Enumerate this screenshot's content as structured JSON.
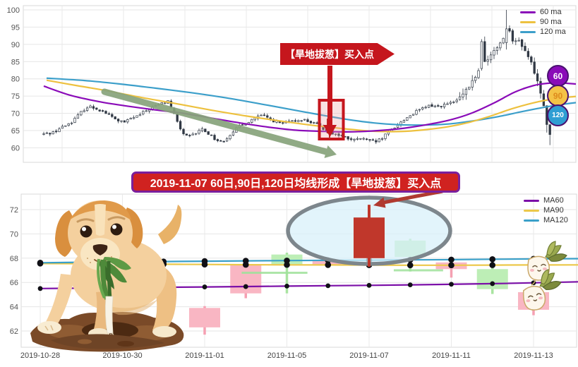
{
  "top_chart": {
    "legend": [
      {
        "label": "60 ma",
        "color": "#8a0bb8"
      },
      {
        "label": "90 ma",
        "color": "#edc13f"
      },
      {
        "label": "120 ma",
        "color": "#3c9fca"
      }
    ],
    "badges": [
      {
        "label": "60",
        "fill": "#8a0bb8",
        "text": "#ffffff"
      },
      {
        "label": "90",
        "fill": "#f4c246",
        "text": "#dd8a1c"
      },
      {
        "label": "120",
        "fill": "#2f9ed3",
        "text": "#ffffff"
      }
    ],
    "buy_annotation": {
      "text": "【旱地拔葱】买入点",
      "fill": "#c5161d"
    }
  },
  "bottom_chart": {
    "legend": [
      {
        "label": "MA60",
        "color": "#7b0fa8"
      },
      {
        "label": "MA90",
        "color": "#ecc84a"
      },
      {
        "label": "MA120",
        "color": "#3aa0c9"
      }
    ],
    "banner": {
      "text": "2019-11-07 60日,90日,120日均线形成【旱地拔葱】买入点",
      "fill": "#d02220",
      "border": "#7a1f9c"
    }
  },
  "decor": {
    "dog": "cartoon labrador puppy pulling a green onion out of a dirt mound",
    "radish_characters": 2
  },
  "chart_data": [
    {
      "id": "main-daily-chart",
      "type": "candlestick",
      "ylim": [
        57,
        101
      ],
      "y_ticks": [
        60,
        65,
        70,
        75,
        80,
        85,
        90,
        95,
        100
      ],
      "x_axis_labels": "hidden",
      "grid": true,
      "legend_position": "top-right",
      "candle_down_color": "#303844",
      "candle_up_color": "#ffffff",
      "price_path_keypoints": [
        [
          63,
          64.0
        ],
        [
          75,
          64.5
        ],
        [
          88,
          66.0
        ],
        [
          100,
          67.3
        ],
        [
          108,
          68.8
        ],
        [
          118,
          71.0
        ],
        [
          126,
          72.0
        ],
        [
          138,
          71.3
        ],
        [
          148,
          70.3
        ],
        [
          158,
          69.0
        ],
        [
          166,
          68.0
        ],
        [
          176,
          67.3
        ],
        [
          186,
          68.6
        ],
        [
          196,
          69.3
        ],
        [
          206,
          70.6
        ],
        [
          216,
          71.8
        ],
        [
          228,
          72.8
        ],
        [
          238,
          73.5
        ],
        [
          244,
          71.0
        ],
        [
          252,
          67.0
        ],
        [
          258,
          64.5
        ],
        [
          266,
          63.0
        ],
        [
          276,
          64.0
        ],
        [
          286,
          65.5
        ],
        [
          296,
          64.0
        ],
        [
          306,
          62.3
        ],
        [
          314,
          61.7
        ],
        [
          322,
          63.0
        ],
        [
          330,
          64.8
        ],
        [
          340,
          66.3
        ],
        [
          350,
          67.3
        ],
        [
          360,
          68.6
        ],
        [
          370,
          69.3
        ],
        [
          378,
          68.8
        ],
        [
          388,
          67.8
        ],
        [
          398,
          67.0
        ],
        [
          408,
          67.3
        ],
        [
          418,
          67.8
        ],
        [
          428,
          68.3
        ],
        [
          438,
          67.6
        ],
        [
          448,
          66.8
        ],
        [
          456,
          65.8
        ],
        [
          464,
          65.0
        ],
        [
          470,
          64.3
        ],
        [
          478,
          63.8
        ],
        [
          486,
          63.2
        ],
        [
          494,
          62.6
        ],
        [
          502,
          62.2
        ],
        [
          512,
          62.8
        ],
        [
          522,
          62.0
        ],
        [
          532,
          61.7
        ],
        [
          540,
          62.5
        ],
        [
          548,
          64.0
        ],
        [
          556,
          65.5
        ],
        [
          564,
          66.8
        ],
        [
          572,
          68.0
        ],
        [
          580,
          69.3
        ],
        [
          590,
          70.5
        ],
        [
          600,
          71.5
        ],
        [
          610,
          72.3
        ],
        [
          620,
          72.0
        ],
        [
          630,
          72.5
        ],
        [
          640,
          73.0
        ],
        [
          648,
          73.8
        ],
        [
          656,
          75.5
        ],
        [
          664,
          77.5
        ],
        [
          670,
          79.5
        ],
        [
          676,
          81.5
        ],
        [
          682,
          83.5
        ],
        [
          688,
          85.0
        ],
        [
          694,
          86.5
        ],
        [
          700,
          88.0
        ],
        [
          706,
          89.5
        ],
        [
          712,
          91.5
        ],
        [
          716,
          93.5
        ],
        [
          720,
          96.0
        ],
        [
          724,
          92.5
        ],
        [
          728,
          90.0
        ],
        [
          734,
          91.5
        ],
        [
          740,
          89.5
        ],
        [
          746,
          87.5
        ],
        [
          752,
          85.0
        ],
        [
          758,
          81.5
        ],
        [
          764,
          77.5
        ],
        [
          770,
          73.0
        ],
        [
          774,
          68.0
        ],
        [
          778,
          63.5
        ],
        [
          782,
          64.5
        ]
      ],
      "spike": {
        "x": 719,
        "high": 100,
        "body": [
          90.5,
          94.5
        ]
      },
      "big_candle": {
        "x": 681,
        "body": [
          83,
          90.8
        ]
      },
      "series": [
        {
          "name": "60 ma",
          "color": "#8a0bb8",
          "keypoints": [
            [
              62,
              77.9
            ],
            [
              100,
              75.2
            ],
            [
              140,
              73.4
            ],
            [
              180,
              72.1
            ],
            [
              220,
              71.0
            ],
            [
              260,
              70.0
            ],
            [
              300,
              68.6
            ],
            [
              340,
              67.2
            ],
            [
              380,
              66.0
            ],
            [
              420,
              65.1
            ],
            [
              455,
              64.8
            ],
            [
              490,
              64.6
            ],
            [
              520,
              64.8
            ],
            [
              550,
              65.2
            ],
            [
              580,
              65.9
            ],
            [
              610,
              66.9
            ],
            [
              640,
              68.2
            ],
            [
              670,
              70.2
            ],
            [
              700,
              73.0
            ],
            [
              730,
              76.2
            ],
            [
              755,
              78.0
            ],
            [
              775,
              78.7
            ],
            [
              795,
              78.8
            ],
            [
              816,
              78.5
            ]
          ]
        },
        {
          "name": "90 ma",
          "color": "#edc13f",
          "keypoints": [
            [
              66,
              79.6
            ],
            [
              110,
              78.0
            ],
            [
              150,
              76.6
            ],
            [
              200,
              74.6
            ],
            [
              250,
              72.8
            ],
            [
              300,
              70.9
            ],
            [
              350,
              69.2
            ],
            [
              400,
              67.7
            ],
            [
              440,
              66.6
            ],
            [
              480,
              65.7
            ],
            [
              515,
              65.0
            ],
            [
              545,
              64.7
            ],
            [
              575,
              64.8
            ],
            [
              605,
              65.3
            ],
            [
              635,
              66.1
            ],
            [
              665,
              67.4
            ],
            [
              695,
              69.2
            ],
            [
              725,
              71.3
            ],
            [
              755,
              73.0
            ],
            [
              785,
              74.2
            ],
            [
              816,
              74.9
            ]
          ]
        },
        {
          "name": "120 ma",
          "color": "#3c9fca",
          "keypoints": [
            [
              66,
              80.2
            ],
            [
              120,
              79.5
            ],
            [
              170,
              78.5
            ],
            [
              220,
              77.3
            ],
            [
              270,
              76.0
            ],
            [
              320,
              74.5
            ],
            [
              370,
              72.7
            ],
            [
              410,
              71.2
            ],
            [
              450,
              69.7
            ],
            [
              490,
              68.3
            ],
            [
              530,
              67.2
            ],
            [
              565,
              66.7
            ],
            [
              600,
              66.6
            ],
            [
              635,
              66.9
            ],
            [
              670,
              67.8
            ],
            [
              705,
              69.0
            ],
            [
              740,
              70.5
            ],
            [
              775,
              71.9
            ],
            [
              800,
              72.7
            ],
            [
              816,
              73.1
            ]
          ]
        }
      ],
      "annotations": {
        "banner_text": "【旱地拔葱】买入点",
        "highlight_box_price_range": [
          62.5,
          73.5
        ],
        "trend_arrow": "green downtrend arrow across middle of chart",
        "buy_point_arrow": "red arrow from banner down into highlight box"
      }
    },
    {
      "id": "zoomed-buy-point-chart",
      "type": "candlestick",
      "ylim": [
        61,
        72.8
      ],
      "y_ticks": [
        62,
        64,
        66,
        68,
        70,
        72
      ],
      "x_tick_labels": [
        "2019-10-28",
        "2019-10-30",
        "2019-11-01",
        "2019-11-05",
        "2019-11-07",
        "2019-11-11",
        "2019-11-13"
      ],
      "dates": [
        "2019-10-28",
        "2019-10-29",
        "2019-10-30",
        "2019-10-31",
        "2019-11-01",
        "2019-11-04",
        "2019-11-05",
        "2019-11-06",
        "2019-11-07",
        "2019-11-08",
        "2019-11-11",
        "2019-11-12",
        "2019-11-13"
      ],
      "occluded_by_dog": [
        "2019-10-28",
        "2019-10-29",
        "2019-10-30",
        "2019-10-31"
      ],
      "up_color": "#f9b6c3",
      "down_color": "#bdeeb6",
      "highlight_color": "#c0372b",
      "candles": [
        {
          "date": "2019-10-28",
          "occluded": true
        },
        {
          "date": "2019-10-29",
          "occluded": true
        },
        {
          "date": "2019-10-30",
          "occluded": true
        },
        {
          "date": "2019-10-31",
          "occluded": true
        },
        {
          "date": "2019-11-01",
          "open": 62.3,
          "close": 63.9,
          "high": 64.05,
          "low": 61.7,
          "dir": "up"
        },
        {
          "date": "2019-11-04",
          "open": 65.1,
          "close": 67.5,
          "high": 67.6,
          "low": 64.7,
          "dir": "up"
        },
        {
          "date": "2019-11-05",
          "open": 68.3,
          "close": 67.5,
          "high": 68.45,
          "low": 65.1,
          "dir": "down"
        },
        {
          "date": "2019-11-06",
          "open": 67.5,
          "close": 67.75,
          "high": 67.95,
          "low": 67.35,
          "dir": "up"
        },
        {
          "date": "2019-11-07",
          "open": 68.0,
          "close": 71.35,
          "high": 72.4,
          "low": 67.3,
          "dir": "up",
          "highlight": true
        },
        {
          "date": "2019-11-08",
          "open": 69.45,
          "close": 68.1,
          "high": 69.6,
          "low": 66.9,
          "dir": "down"
        },
        {
          "date": "2019-11-11",
          "open": 67.1,
          "close": 67.65,
          "high": 67.75,
          "low": 66.4,
          "dir": "up"
        },
        {
          "date": "2019-11-12",
          "open": 67.1,
          "close": 65.45,
          "high": 67.2,
          "low": 65.05,
          "dir": "down"
        },
        {
          "date": "2019-11-13",
          "open": 63.75,
          "close": 65.2,
          "high": 65.3,
          "low": 63.3,
          "dir": "up"
        }
      ],
      "series": [
        {
          "name": "MA60",
          "color": "#7b0fa8",
          "values": [
            65.5,
            65.53,
            65.56,
            65.6,
            65.63,
            65.66,
            65.7,
            65.73,
            65.76,
            65.8,
            65.85,
            65.9,
            65.97
          ],
          "right_edge_value": 66.05
        },
        {
          "name": "MA90",
          "color": "#ecc84a",
          "values": [
            67.56,
            67.54,
            67.52,
            67.5,
            67.48,
            67.46,
            67.45,
            67.44,
            67.43,
            67.42,
            67.42,
            67.43,
            67.44
          ],
          "right_edge_value": 67.45
        },
        {
          "name": "MA120",
          "color": "#3aa0c9",
          "values": [
            67.62,
            67.66,
            67.7,
            67.72,
            67.75,
            67.78,
            67.8,
            67.82,
            67.84,
            67.86,
            67.88,
            67.91,
            67.94
          ],
          "right_edge_value": 67.96
        }
      ],
      "extra_marks": [
        {
          "type": "hline",
          "i1": 4.9,
          "i2": 6.5,
          "value": 66.8,
          "color": "#9fe29b"
        },
        {
          "type": "hline",
          "i1": 8.6,
          "i2": 9.8,
          "value": 67.0,
          "color": "#9fe29b"
        }
      ],
      "ellipse_highlight": {
        "center_date": "2019-11-07",
        "price_center": 70.3,
        "note": "gray ellipse around 2019-11-07 candle"
      }
    }
  ]
}
